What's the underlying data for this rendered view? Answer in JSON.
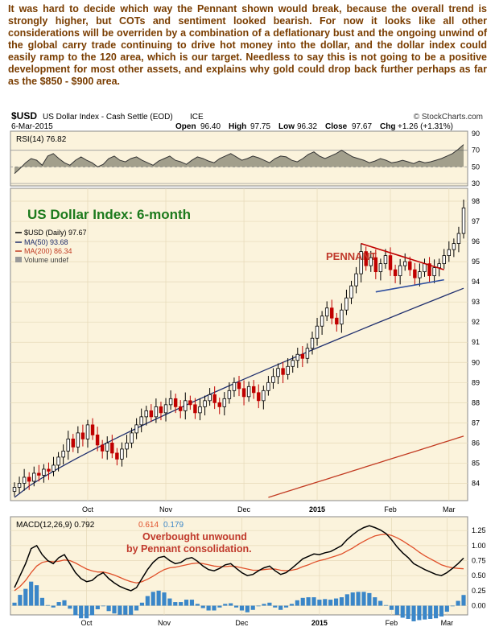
{
  "commentary": "It was hard to decide which way the Pennant shown would break, because the overall trend is strongly higher, but COTs and sentiment looked bearish. For now it looks like all other considerations will be overriden by a combination of a deflationary bust and the ongoing unwind of the global carry trade continuing to drive hot money into the dollar, and the dollar index could easily ramp to the 120 area, which is our target. Needless to say this is not going to be a positive development for most other assets, and explains why gold could drop back further perhaps as far as the $850 - $900 area.",
  "header": {
    "symbol": "$USD",
    "name": "US Dollar Index - Cash Settle (EOD)",
    "exchange": "ICE",
    "source": "© StockCharts.com",
    "date": "6-Mar-2015",
    "open_label": "Open",
    "open": "96.40",
    "high_label": "High",
    "high": "97.75",
    "low_label": "Low",
    "low": "96.32",
    "close_label": "Close",
    "close": "97.67",
    "chg_label": "Chg",
    "chg": "+1.26 (+1.31%)"
  },
  "colors": {
    "bull": "#000000",
    "bear": "#c00000",
    "ma50": "#1f2f6e",
    "ma200": "#c23b22",
    "pennant_top": "#c00000",
    "pennant_bottom": "#2f4fa0",
    "panel_bg": "#fbf3dc",
    "rsi_fill": "#5a5a4a",
    "macd_signal": "#e0502a",
    "hist": "#3a86c8"
  },
  "chart_data": [
    {
      "type": "line",
      "title": "RSI(14) 76.82",
      "series": [
        {
          "name": "RSI(14) 76.82",
          "values": [
            42,
            48,
            55,
            60,
            58,
            52,
            63,
            66,
            60,
            55,
            52,
            58,
            62,
            58,
            55,
            50,
            53,
            60,
            63,
            58,
            56,
            60,
            62,
            58,
            55,
            52,
            57,
            60,
            63,
            58,
            56,
            53,
            58,
            62,
            60,
            57,
            55,
            60,
            63,
            66,
            62,
            58,
            60,
            63,
            61,
            58,
            55,
            60,
            63,
            62,
            58,
            56,
            60,
            65,
            68,
            63,
            60,
            63,
            66,
            70,
            66,
            62,
            60,
            58,
            55,
            57,
            60,
            58,
            55,
            56,
            58,
            56,
            54,
            57,
            55,
            56,
            58,
            60,
            63,
            66,
            71,
            76.82
          ]
        }
      ],
      "ylim": [
        30,
        90
      ],
      "yticks": [
        90,
        70,
        50,
        30
      ],
      "bands": [
        70,
        50,
        30
      ]
    },
    {
      "type": "candlestick",
      "title": "US Dollar Index: 6-month",
      "x_ticks": [
        "Oct",
        "Nov",
        "Dec",
        "2015",
        "Feb",
        "Mar"
      ],
      "ylim": [
        83.3,
        98.4
      ],
      "yticks": [
        98,
        97,
        96,
        95,
        94,
        93,
        92,
        91,
        90,
        89,
        88,
        87,
        86,
        85,
        84
      ],
      "closes": [
        83.8,
        84.0,
        84.3,
        84.1,
        84.5,
        84.4,
        84.7,
        84.6,
        84.9,
        85.3,
        85.6,
        86.2,
        85.8,
        86.5,
        86.2,
        86.9,
        86.4,
        85.9,
        85.6,
        86.0,
        85.5,
        85.2,
        85.7,
        86.0,
        86.5,
        86.9,
        87.3,
        87.6,
        87.3,
        87.8,
        87.5,
        87.9,
        88.2,
        87.8,
        87.6,
        88.1,
        87.9,
        87.5,
        87.8,
        88.1,
        88.4,
        88.0,
        87.8,
        88.2,
        88.6,
        89.0,
        88.7,
        88.3,
        88.8,
        88.5,
        88.1,
        88.6,
        89.0,
        89.3,
        89.7,
        89.4,
        89.8,
        90.1,
        90.4,
        90.2,
        90.7,
        91.2,
        91.8,
        92.3,
        92.7,
        92.2,
        91.9,
        92.6,
        93.2,
        93.8,
        94.4,
        95.5,
        94.8,
        95.2,
        94.5,
        94.9,
        95.3,
        94.6,
        94.3,
        94.8,
        95.0,
        94.6,
        94.2,
        94.5,
        94.9,
        94.3,
        94.7,
        94.9,
        95.3,
        95.6,
        95.9,
        96.4,
        97.67
      ],
      "series": [
        {
          "name": "$USD (Daily) 97.67",
          "type": "candlestick"
        },
        {
          "name": "MA(50) 93.68",
          "values_note": "simple moving average",
          "endpoints": [
            [
              0,
              83.3
            ],
            [
              92,
              93.68
            ]
          ]
        },
        {
          "name": "MA(200) 86.34",
          "endpoints": [
            [
              52,
              83.3
            ],
            [
              92,
              86.34
            ]
          ]
        }
      ],
      "legend_extra": "Volume undef",
      "annotations": [
        "PENNANT"
      ]
    },
    {
      "type": "line",
      "title": "MACD(12,26,9) 0.792, 0.614, 0.179",
      "series": [
        {
          "name": "MACD(12,26,9) 0.792",
          "values": [
            0.3,
            0.5,
            0.7,
            0.95,
            1.0,
            0.85,
            0.75,
            0.7,
            0.8,
            0.85,
            0.7,
            0.55,
            0.45,
            0.4,
            0.42,
            0.5,
            0.55,
            0.45,
            0.38,
            0.32,
            0.28,
            0.25,
            0.3,
            0.45,
            0.6,
            0.72,
            0.8,
            0.82,
            0.75,
            0.7,
            0.72,
            0.78,
            0.8,
            0.74,
            0.66,
            0.6,
            0.58,
            0.62,
            0.68,
            0.7,
            0.62,
            0.55,
            0.5,
            0.52,
            0.58,
            0.63,
            0.66,
            0.58,
            0.52,
            0.55,
            0.62,
            0.7,
            0.78,
            0.82,
            0.86,
            0.85,
            0.88,
            0.9,
            0.95,
            1.0,
            1.1,
            1.18,
            1.25,
            1.3,
            1.33,
            1.3,
            1.26,
            1.2,
            1.1,
            0.98,
            0.88,
            0.8,
            0.7,
            0.65,
            0.6,
            0.56,
            0.52,
            0.5,
            0.55,
            0.62,
            0.7,
            0.792
          ]
        },
        {
          "name": "0.614",
          "values": [
            0.25,
            0.32,
            0.42,
            0.55,
            0.66,
            0.72,
            0.74,
            0.73,
            0.74,
            0.76,
            0.75,
            0.71,
            0.66,
            0.61,
            0.58,
            0.56,
            0.56,
            0.54,
            0.51,
            0.47,
            0.43,
            0.4,
            0.38,
            0.4,
            0.44,
            0.49,
            0.55,
            0.6,
            0.63,
            0.64,
            0.66,
            0.68,
            0.7,
            0.71,
            0.7,
            0.68,
            0.66,
            0.65,
            0.65,
            0.66,
            0.65,
            0.63,
            0.61,
            0.59,
            0.59,
            0.6,
            0.61,
            0.61,
            0.59,
            0.58,
            0.59,
            0.61,
            0.65,
            0.68,
            0.72,
            0.75,
            0.77,
            0.8,
            0.83,
            0.86,
            0.91,
            0.96,
            1.02,
            1.07,
            1.12,
            1.16,
            1.18,
            1.19,
            1.17,
            1.13,
            1.08,
            1.02,
            0.96,
            0.89,
            0.83,
            0.78,
            0.73,
            0.68,
            0.65,
            0.63,
            0.62,
            0.614
          ]
        },
        {
          "name": "0.179",
          "type": "histogram"
        }
      ],
      "ylim": [
        -0.1,
        1.4
      ],
      "yticks": [
        1.25,
        1.0,
        0.75,
        0.5,
        0.25,
        0.0
      ],
      "x_ticks": [
        "Oct",
        "Nov",
        "Dec",
        "2015",
        "Feb",
        "Mar"
      ],
      "annotations": [
        "Overbought unwound",
        "by Pennant consolidation."
      ]
    }
  ]
}
